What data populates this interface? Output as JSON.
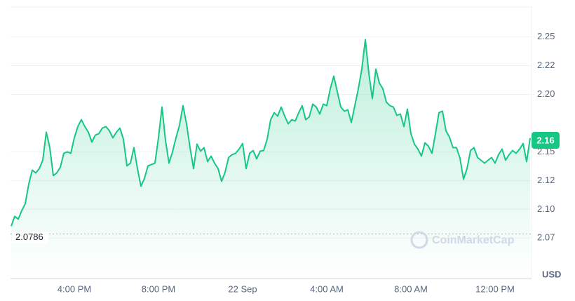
{
  "chart_data": {
    "type": "line",
    "color": "#16c784",
    "currency": "USD",
    "watermark": "CoinMarketCap",
    "baseline": 2.0786,
    "current_price": 2.16,
    "grid": true,
    "ylim": [
      2.041,
      2.276
    ],
    "yticks": [
      2.25,
      {
        "value": 2.225,
        "label": "2.22"
      },
      {
        "value": 2.2,
        "label": "2.20"
      },
      2.15,
      {
        "value": 2.125,
        "label": "2.12"
      },
      {
        "value": 2.1,
        "label": "2.10"
      },
      {
        "value": 2.075,
        "label": "2.07"
      }
    ],
    "categories": [
      null,
      null,
      null,
      null,
      null,
      null,
      null,
      null,
      null,
      null,
      null,
      null,
      null,
      null,
      null,
      null,
      null,
      null,
      "4:00 PM",
      null,
      null,
      null,
      null,
      null,
      null,
      null,
      null,
      null,
      null,
      null,
      null,
      null,
      null,
      null,
      null,
      null,
      null,
      null,
      null,
      null,
      null,
      null,
      "8:00 PM",
      null,
      null,
      null,
      null,
      null,
      null,
      null,
      null,
      null,
      null,
      null,
      null,
      null,
      null,
      null,
      null,
      null,
      null,
      null,
      null,
      null,
      null,
      null,
      "22 Sep",
      null,
      null,
      null,
      null,
      null,
      null,
      null,
      null,
      null,
      null,
      null,
      null,
      null,
      null,
      null,
      null,
      null,
      null,
      null,
      null,
      null,
      null,
      null,
      "4:00 AM",
      null,
      null,
      null,
      null,
      null,
      null,
      null,
      null,
      null,
      null,
      null,
      null,
      null,
      null,
      null,
      null,
      null,
      null,
      null,
      null,
      null,
      null,
      null,
      "8:00 AM",
      null,
      null,
      null,
      null,
      null,
      null,
      null,
      null,
      null,
      null,
      null,
      null,
      null,
      null,
      null,
      null,
      null,
      null,
      null,
      null,
      null,
      null,
      null,
      "12:00 PM",
      null,
      null,
      null,
      null,
      null,
      null,
      null,
      null,
      null,
      null
    ],
    "values": [
      2.0854,
      2.0939,
      2.0915,
      2.0988,
      2.1049,
      2.122,
      2.1341,
      2.1317,
      2.1354,
      2.1427,
      2.1671,
      2.1537,
      2.1293,
      2.1317,
      2.1366,
      2.1488,
      2.15,
      2.1488,
      2.1622,
      2.172,
      2.178,
      2.172,
      2.1671,
      2.1585,
      2.1646,
      2.1659,
      2.1707,
      2.172,
      2.1683,
      2.1622,
      2.1671,
      2.1707,
      2.161,
      2.1378,
      2.1402,
      2.1537,
      2.1354,
      2.1201,
      2.1268,
      2.1378,
      2.139,
      2.1402,
      2.1622,
      2.189,
      2.1598,
      2.1402,
      2.15,
      2.1622,
      2.1732,
      2.1902,
      2.1744,
      2.1537,
      2.1354,
      2.1567,
      2.1506,
      2.1537,
      2.1415,
      2.1463,
      2.1402,
      2.1354,
      2.1244,
      2.1323,
      2.1451,
      2.1476,
      2.1488,
      2.1524,
      2.1573,
      2.1354,
      2.1488,
      2.1512,
      2.1439,
      2.1506,
      2.1512,
      2.161,
      2.178,
      2.1841,
      2.1811,
      2.189,
      2.1811,
      2.1744,
      2.178,
      2.1768,
      2.1841,
      2.1902,
      2.178,
      2.1805,
      2.1915,
      2.189,
      2.1829,
      2.1915,
      2.1902,
      2.2049,
      2.2159,
      2.2024,
      2.189,
      2.1854,
      2.1866,
      2.1756,
      2.1902,
      2.2049,
      2.222,
      2.2476,
      2.2183,
      2.1963,
      2.222,
      2.2098,
      2.2049,
      2.1933,
      2.1902,
      2.189,
      2.1817,
      2.1829,
      2.172,
      2.1872,
      2.1659,
      2.1567,
      2.1524,
      2.1463,
      2.1579,
      2.1549,
      2.1488,
      2.1659,
      2.1841,
      2.1854,
      2.1683,
      2.1628,
      2.1537,
      2.1537,
      2.1445,
      2.1262,
      2.1354,
      2.1512,
      2.1537,
      2.1451,
      2.1427,
      2.1402,
      2.1427,
      2.1451,
      2.1402,
      2.1476,
      2.1524,
      2.1427,
      2.1476,
      2.1512,
      2.1488,
      2.1524,
      2.1573,
      2.1415,
      2.162
    ]
  }
}
